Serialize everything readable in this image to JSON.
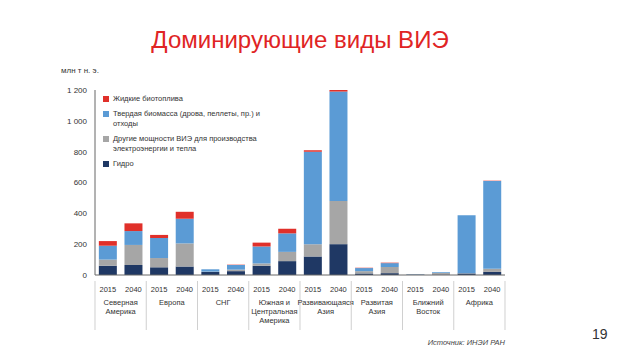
{
  "chart_data": {
    "type": "bar",
    "title": "Доминирующие виды ВИЭ",
    "y_label": "млн т н. э.",
    "source": "Источник: ИНЭИ РАН",
    "stacked": true,
    "grid": false,
    "legend": "top-left",
    "categories": [
      "2015",
      "2040",
      "2015",
      "2040",
      "2015",
      "2040",
      "2015",
      "2040",
      "2015",
      "2040",
      "2015",
      "2040",
      "2015",
      "2040",
      "2015",
      "2040"
    ],
    "groups": [
      "Северная Америка",
      "Европа",
      "СНГ",
      "Южная и Центральная Америка",
      "Развивающаяся Азия",
      "Развитая Азия",
      "Ближний Восток",
      "Африка"
    ],
    "ylim": [
      0,
      1200
    ],
    "yticks": [
      0,
      200,
      400,
      600,
      800,
      {
        "value": 1000,
        "label": "1 000"
      },
      {
        "value": 1200,
        "label": "1 200"
      }
    ],
    "series": [
      {
        "name": "Жидкие биотоплива",
        "color": "#e0302a",
        "values": [
          30,
          50,
          20,
          45,
          0,
          2,
          25,
          30,
          10,
          10,
          2,
          3,
          0,
          0,
          0,
          2
        ]
      },
      {
        "name": "Твердая биомасса (дрова, пеллеты, пр.) и отходы",
        "color": "#5b9bd5",
        "values": [
          90,
          90,
          130,
          160,
          15,
          30,
          110,
          120,
          600,
          710,
          20,
          25,
          2,
          5,
          375,
          570
        ]
      },
      {
        "name": "Другие мощности ВИЭ для производства электроэнергии и тепла",
        "color": "#a6a6a6",
        "values": [
          40,
          130,
          60,
          150,
          2,
          10,
          15,
          60,
          80,
          280,
          15,
          40,
          1,
          10,
          2,
          20
        ]
      },
      {
        "name": "Гидро",
        "color": "#1f3864",
        "values": [
          60,
          65,
          50,
          55,
          20,
          25,
          60,
          90,
          120,
          200,
          10,
          12,
          2,
          3,
          10,
          20
        ]
      }
    ]
  },
  "page_number": "19"
}
